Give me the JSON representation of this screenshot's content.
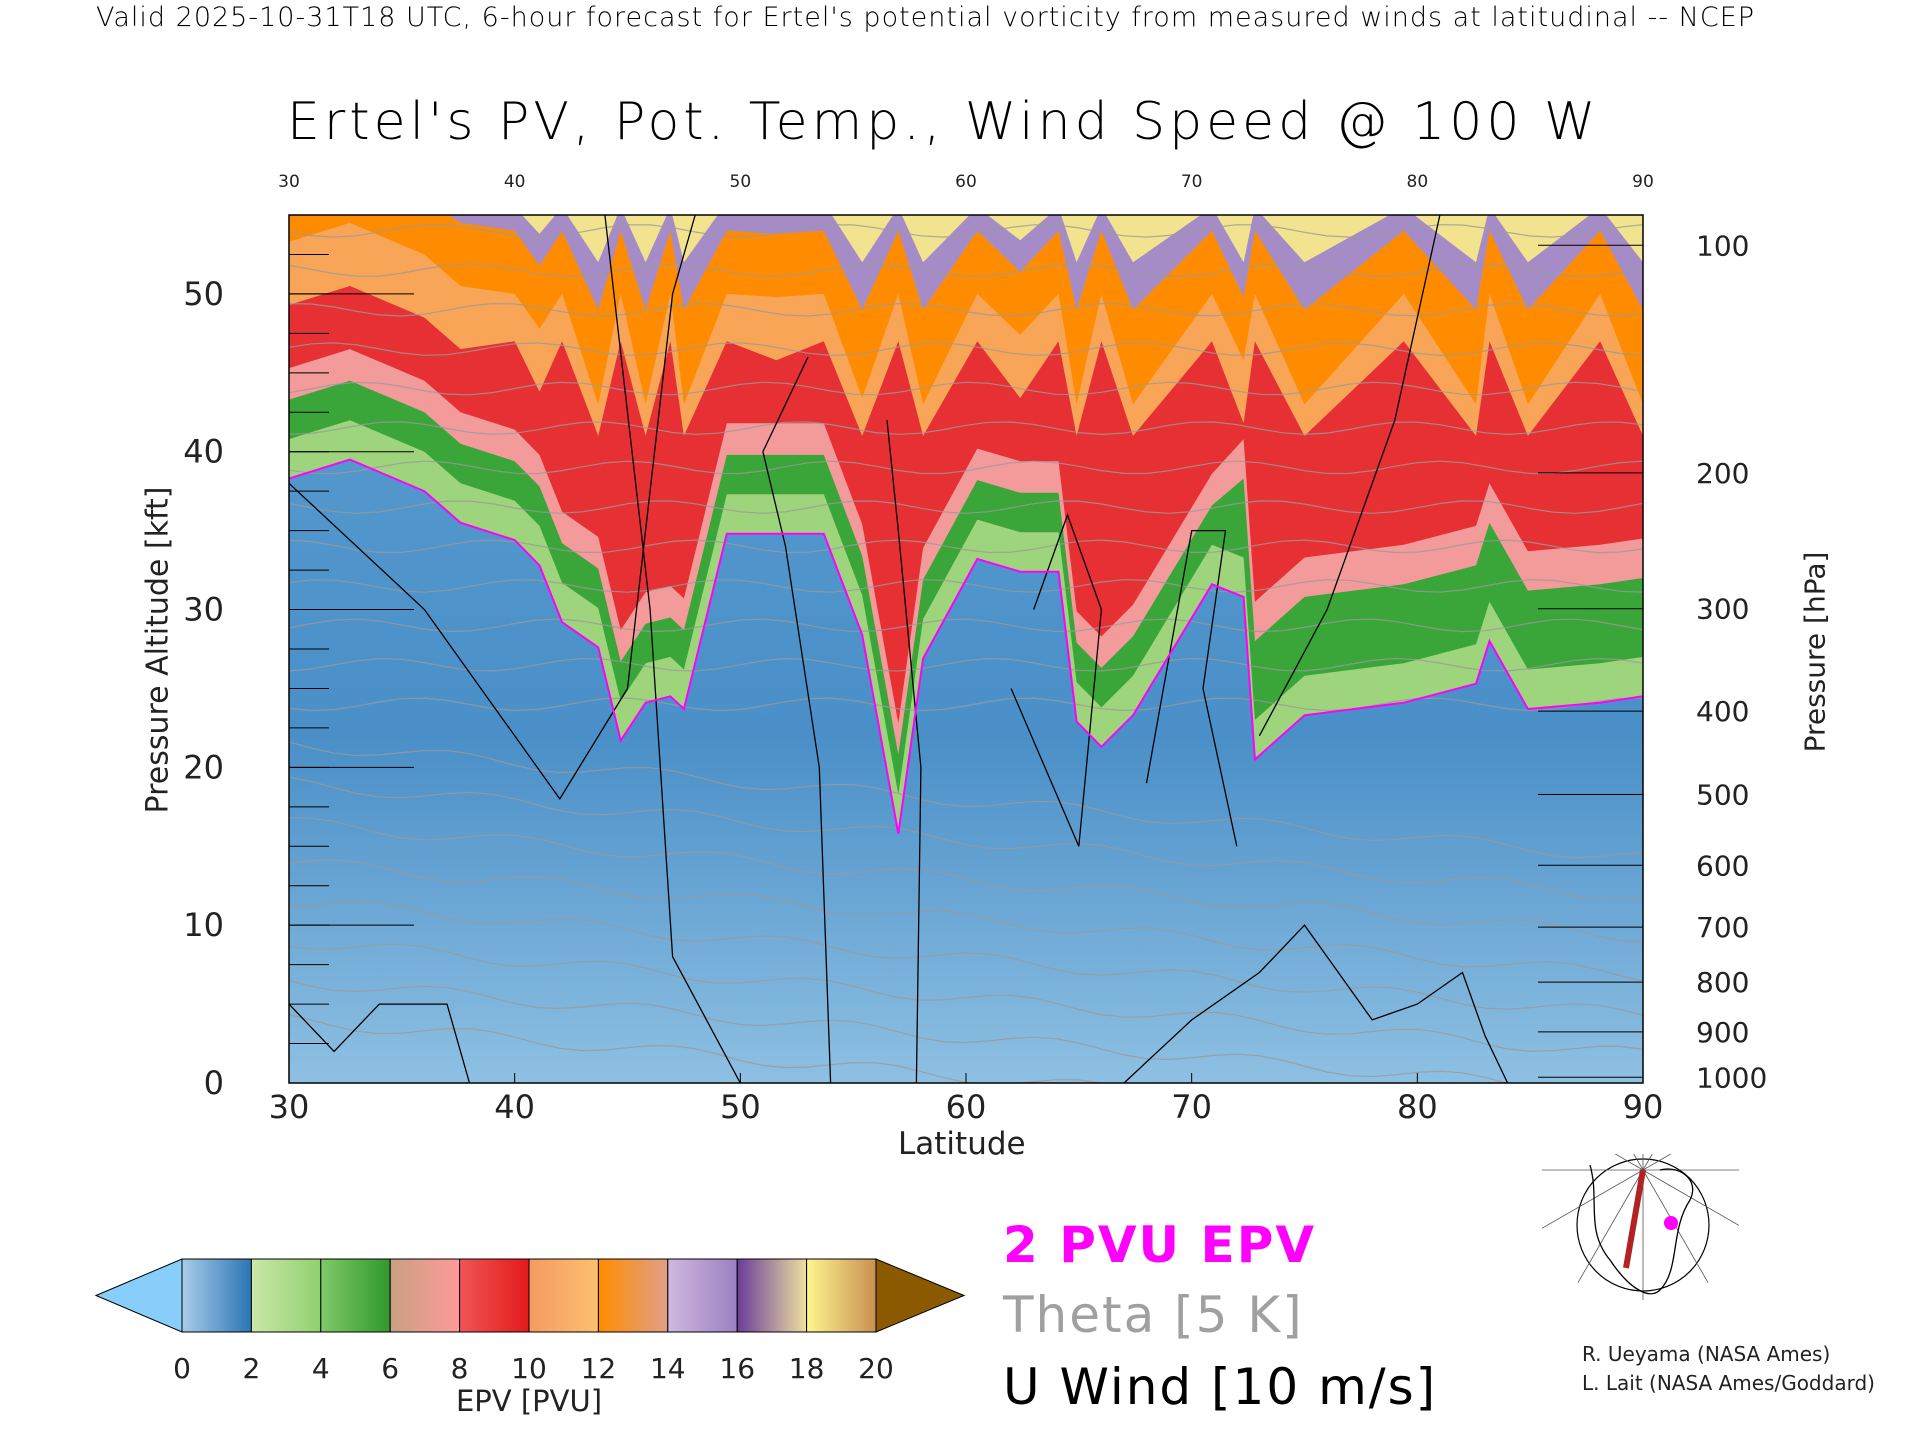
{
  "header": {
    "top_line": "Valid 2025-10-31T18 UTC, 6-hour forecast for Ertel's potential vorticity from measured winds at latitudinal -- NCEP",
    "title": "Ertel's PV, Pot. Temp., Wind Speed @ 100 W"
  },
  "legend": {
    "pvu_line": "2 PVU EPV",
    "theta": "Theta [5 K]",
    "u_wind": "U Wind [10 m/s]",
    "colors": {
      "pvu_line": "#ff00ff",
      "theta": "#a0a0a0",
      "u_wind": "#000000"
    }
  },
  "credits": [
    "R. Ueyama (NASA Ames)",
    "L. Lait (NASA Ames/Goddard)"
  ],
  "chart_data": {
    "type": "heatmap",
    "title": "Ertel's PV, Pot. Temp., Wind Speed @ 100 W",
    "xlabel": "Latitude",
    "ylabel": "Pressure Altitude [kft]",
    "y2label": "Pressure [hPa]",
    "xlim": [
      30,
      90
    ],
    "ylim": [
      0,
      55
    ],
    "x_ticks": [
      "30",
      "40",
      "50",
      "60",
      "70",
      "80",
      "90"
    ],
    "y_ticks": [
      "0",
      "10",
      "20",
      "30",
      "40",
      "50"
    ],
    "y2_ticks": [
      "100",
      "200",
      "300",
      "400",
      "500",
      "600",
      "700",
      "800",
      "900",
      "1000"
    ],
    "colorbar": {
      "label": "EPV [PVU]",
      "ticks": [
        "0",
        "2",
        "4",
        "6",
        "8",
        "10",
        "12",
        "14",
        "16",
        "18",
        "20"
      ],
      "under_color": "#87cefa",
      "over_color": "#8b5a00",
      "segments": [
        [
          "#a9cde8",
          "#2b74b5"
        ],
        [
          "#cbe8a8",
          "#8fd070"
        ],
        [
          "#80c868",
          "#2e9a2e"
        ],
        [
          "#c8a080",
          "#ff9a9a"
        ],
        [
          "#f05555",
          "#e31a1c"
        ],
        [
          "#f59a60",
          "#fdc070"
        ],
        [
          "#ff8c00",
          "#e0a088"
        ],
        [
          "#d0b8e0",
          "#9a80c0"
        ],
        [
          "#6a3d9a",
          "#eee0a0"
        ],
        [
          "#fff68f",
          "#c89050"
        ]
      ]
    },
    "tropopause_2pvu": [
      [
        30,
        38.3
      ],
      [
        32.7,
        39.5
      ],
      [
        36,
        37.5
      ],
      [
        37.6,
        35.5
      ],
      [
        40,
        34.4
      ],
      [
        41.1,
        32.8
      ],
      [
        42.1,
        29.2
      ],
      [
        43.7,
        27.6
      ],
      [
        44.7,
        21.7
      ],
      [
        45.8,
        24.1
      ],
      [
        46.9,
        24.5
      ],
      [
        47.5,
        23.7
      ],
      [
        49.4,
        34.8
      ],
      [
        51.6,
        34.8
      ],
      [
        53.7,
        34.8
      ],
      [
        55.4,
        28.4
      ],
      [
        57,
        15.8
      ],
      [
        58.1,
        26.9
      ],
      [
        60.5,
        33.2
      ],
      [
        62.4,
        32.4
      ],
      [
        64.1,
        32.4
      ],
      [
        64.9,
        22.9
      ],
      [
        66,
        21.3
      ],
      [
        67.4,
        23.3
      ],
      [
        70.9,
        31.6
      ],
      [
        72.3,
        30.8
      ],
      [
        72.8,
        20.5
      ],
      [
        75,
        23.3
      ],
      [
        79.4,
        24.1
      ],
      [
        82.6,
        25.3
      ],
      [
        83.2,
        28
      ],
      [
        84.9,
        23.7
      ],
      [
        88.1,
        24.1
      ],
      [
        90,
        24.5
      ]
    ]
  }
}
